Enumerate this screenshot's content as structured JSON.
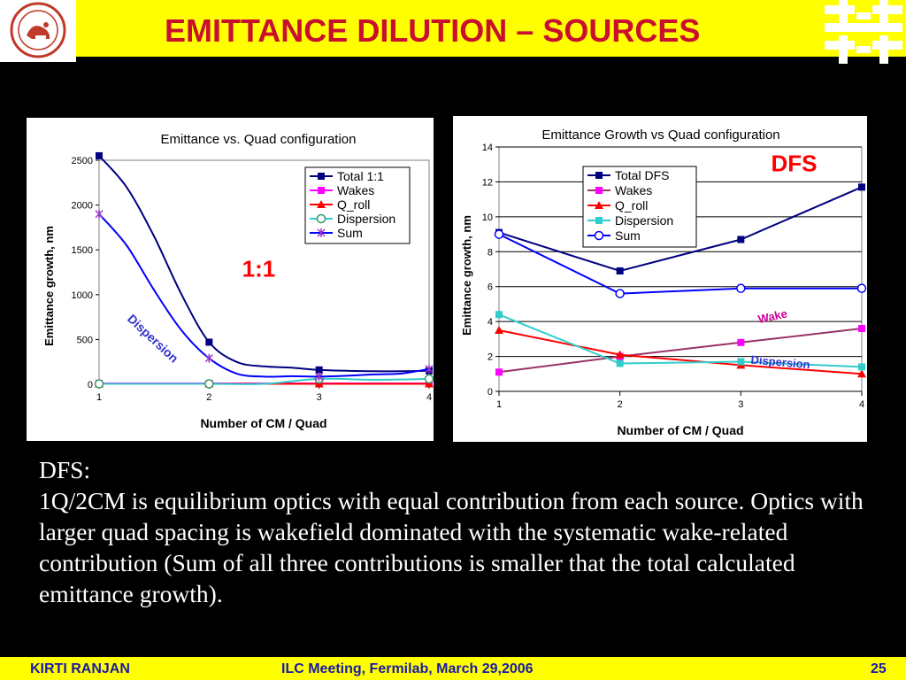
{
  "slide": {
    "title": "EMITTANCE DILUTION – SOURCES",
    "body_heading": "DFS:",
    "body_paragraph": "1Q/2CM is equilibrium optics with equal contribution from each source. Optics with larger quad spacing is wakefield dominated with the systematic wake-related contribution (Sum of all three contributions is smaller that the total calculated emittance growth).",
    "footer": {
      "author": "KIRTI RANJAN",
      "meeting": "ILC Meeting, Fermilab, March 29,2006",
      "page": "25"
    }
  },
  "colors": {
    "header_bg": "#ffff00",
    "title_text": "#c8102e",
    "footer_text": "#1a1aa6",
    "total": "#000080",
    "wakes": "#ff00ff",
    "wakes_line": "#993366",
    "q_roll": "#ff0000",
    "dispersion": "#33cccc",
    "sum": "#0000ff"
  },
  "chart_data": [
    {
      "type": "line",
      "title": "Emittance vs. Quad configuration",
      "xlabel": "Number of CM / Quad",
      "ylabel": "Emittance growth, nm",
      "x": [
        1,
        2,
        3,
        4
      ],
      "xlim": [
        1,
        4
      ],
      "ylim": [
        0,
        2500
      ],
      "y_ticks": [
        "0",
        "500",
        "1000",
        "1500",
        "2000",
        "2500"
      ],
      "x_ticks": [
        "1",
        "2",
        "3",
        "4"
      ],
      "grid": false,
      "legend_position": "top-right",
      "series": [
        {
          "name": "Total 1:1",
          "values": [
            2550,
            470,
            160,
            150
          ],
          "curve": [
            [
              1,
              2550
            ],
            [
              1.25,
              2200
            ],
            [
              1.5,
              1650
            ],
            [
              1.75,
              1000
            ],
            [
              2,
              470
            ],
            [
              2.25,
              250
            ],
            [
              2.5,
              200
            ],
            [
              2.75,
              185
            ],
            [
              3,
              160
            ],
            [
              3.25,
              150
            ],
            [
              3.5,
              145
            ],
            [
              3.75,
              145
            ],
            [
              4,
              150
            ]
          ]
        },
        {
          "name": "Wakes",
          "values": [
            10,
            10,
            10,
            10
          ]
        },
        {
          "name": "Q_roll",
          "values": [
            5,
            5,
            5,
            5
          ]
        },
        {
          "name": "Dispersion",
          "values": [
            5,
            5,
            60,
            60
          ],
          "curve": [
            [
              1,
              5
            ],
            [
              2,
              5
            ],
            [
              2.5,
              5
            ],
            [
              3,
              60
            ],
            [
              3.5,
              50
            ],
            [
              4,
              60
            ]
          ]
        },
        {
          "name": "Sum",
          "values": [
            1900,
            290,
            85,
            170
          ],
          "curve": [
            [
              1,
              1900
            ],
            [
              1.25,
              1550
            ],
            [
              1.5,
              1050
            ],
            [
              1.75,
              600
            ],
            [
              2,
              290
            ],
            [
              2.25,
              120
            ],
            [
              2.5,
              85
            ],
            [
              2.75,
              90
            ],
            [
              3,
              85
            ],
            [
              3.25,
              95
            ],
            [
              3.5,
              110
            ],
            [
              3.75,
              120
            ],
            [
              4,
              170
            ]
          ]
        }
      ],
      "annotations": [
        {
          "text": "1:1",
          "x": 2.3,
          "y": 1200,
          "color": "#ff0000"
        },
        {
          "text": "Dispersion",
          "x": 1.25,
          "y": 720,
          "color": "#3333cc",
          "rotate": 43
        }
      ]
    },
    {
      "type": "line",
      "title": "Emittance Growth vs Quad configuration",
      "xlabel": "Number of CM / Quad",
      "ylabel": "Emittance growth, nm",
      "x": [
        1,
        2,
        3,
        4
      ],
      "xlim": [
        1,
        4
      ],
      "ylim": [
        0,
        14
      ],
      "y_ticks": [
        "0",
        "2",
        "4",
        "6",
        "8",
        "10",
        "12",
        "14"
      ],
      "x_ticks": [
        "1",
        "2",
        "3",
        "4"
      ],
      "grid": true,
      "legend_position": "top-center",
      "series": [
        {
          "name": "Total DFS",
          "values": [
            9.1,
            6.9,
            8.7,
            11.7
          ]
        },
        {
          "name": "Wakes",
          "values": [
            1.1,
            2.0,
            2.8,
            3.6
          ]
        },
        {
          "name": "Q_roll",
          "values": [
            3.5,
            2.1,
            1.5,
            1.0
          ]
        },
        {
          "name": "Dispersion",
          "values": [
            4.4,
            1.6,
            1.7,
            1.4
          ]
        },
        {
          "name": "Sum",
          "values": [
            9.0,
            5.6,
            5.9,
            5.9
          ]
        }
      ],
      "annotations": [
        {
          "text": "DFS",
          "x": 3.25,
          "y": 12.6,
          "color": "#ff0000"
        },
        {
          "text": "Wake",
          "x": 3.15,
          "y": 3.9,
          "color": "#cc0099",
          "rotate": -12
        },
        {
          "text": "Dispersion",
          "x": 3.08,
          "y": 1.6,
          "color": "#3333cc",
          "rotate": 5
        }
      ]
    }
  ]
}
